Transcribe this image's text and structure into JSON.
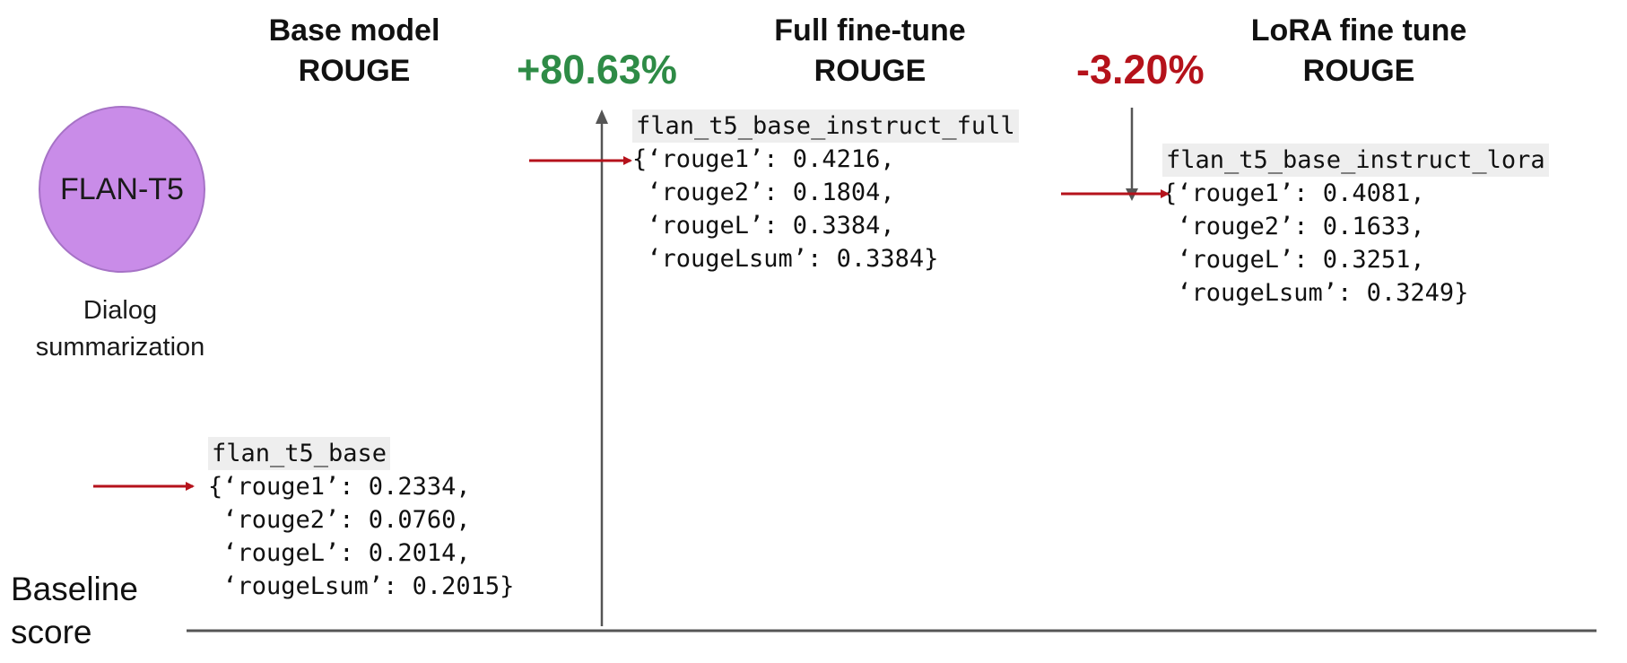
{
  "headers": {
    "base": [
      "Base model",
      "ROUGE"
    ],
    "full": [
      "Full fine-tune",
      "ROUGE"
    ],
    "lora": [
      "LoRA  fine tune",
      "ROUGE"
    ]
  },
  "changes": {
    "full": "+80.63%",
    "lora": "-3.20%"
  },
  "model": {
    "name": "FLAN-T5",
    "task": [
      "Dialog",
      "summarization"
    ]
  },
  "baseline_label": [
    "Baseline",
    "score"
  ],
  "results": {
    "base": {
      "name": "flan_t5_base",
      "lines": [
        "{‘rouge1’: 0.2334,",
        " ‘rouge2’: 0.0760,",
        " ‘rougeL’: 0.2014,",
        " ‘rougeLsum’: 0.2015}"
      ]
    },
    "full": {
      "name": "flan_t5_base_instruct_full",
      "lines": [
        "{‘rouge1’: 0.4216,",
        " ‘rouge2’: 0.1804,",
        " ‘rougeL’: 0.3384,",
        " ‘rougeLsum’: 0.3384}"
      ]
    },
    "lora": {
      "name": "flan_t5_base_instruct_lora",
      "lines": [
        "{‘rouge1’: 0.4081,",
        " ‘rouge2’: 0.1633,",
        " ‘rougeL’: 0.3251,",
        " ‘rougeLsum’: 0.3249}"
      ]
    }
  },
  "colors": {
    "increase": "#2e8b46",
    "decrease": "#b5121b",
    "pointer": "#b5121b",
    "axis": "#555555",
    "circle": "#c98ce8"
  }
}
